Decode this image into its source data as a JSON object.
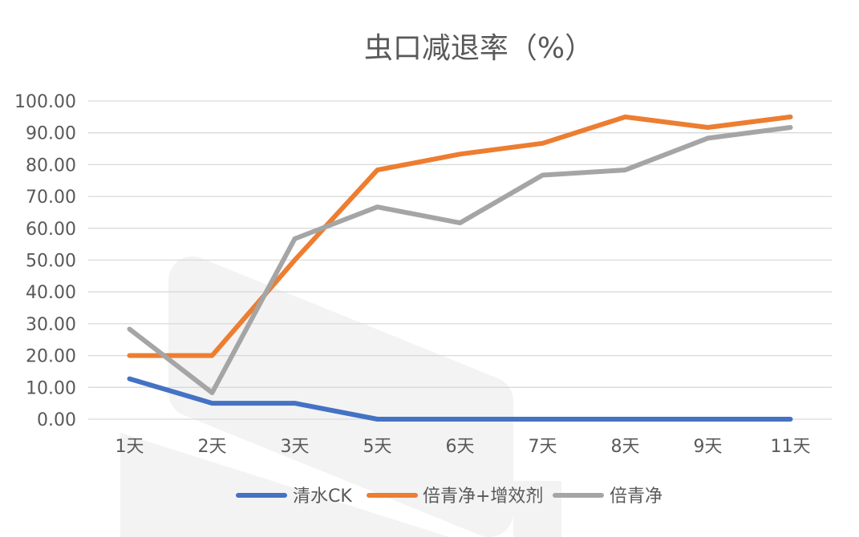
{
  "chart_data": {
    "type": "line",
    "title": "虫口减退率（%）",
    "categories": [
      "1天",
      "2天",
      "3天",
      "5天",
      "6天",
      "7天",
      "8天",
      "9天",
      "11天"
    ],
    "series": [
      {
        "name": "清水CK",
        "color": "#4472c4",
        "values": [
          12.7,
          5.0,
          5.0,
          0.0,
          0.0,
          0.0,
          0.0,
          0.0,
          0.0
        ]
      },
      {
        "name": "倍青净+增效剂",
        "color": "#ed7d31",
        "values": [
          20.0,
          20.0,
          50.0,
          78.3,
          83.3,
          86.7,
          95.0,
          91.7,
          95.0
        ]
      },
      {
        "name": "倍青净",
        "color": "#a5a5a5",
        "values": [
          28.3,
          8.3,
          56.7,
          66.7,
          61.7,
          76.7,
          78.3,
          88.3,
          91.7
        ]
      }
    ],
    "ylim": [
      0,
      100
    ],
    "yticks": [
      "0.00",
      "10.00",
      "20.00",
      "30.00",
      "40.00",
      "50.00",
      "60.00",
      "70.00",
      "80.00",
      "90.00",
      "100.00"
    ],
    "grid": true,
    "legend_position": "bottom"
  }
}
